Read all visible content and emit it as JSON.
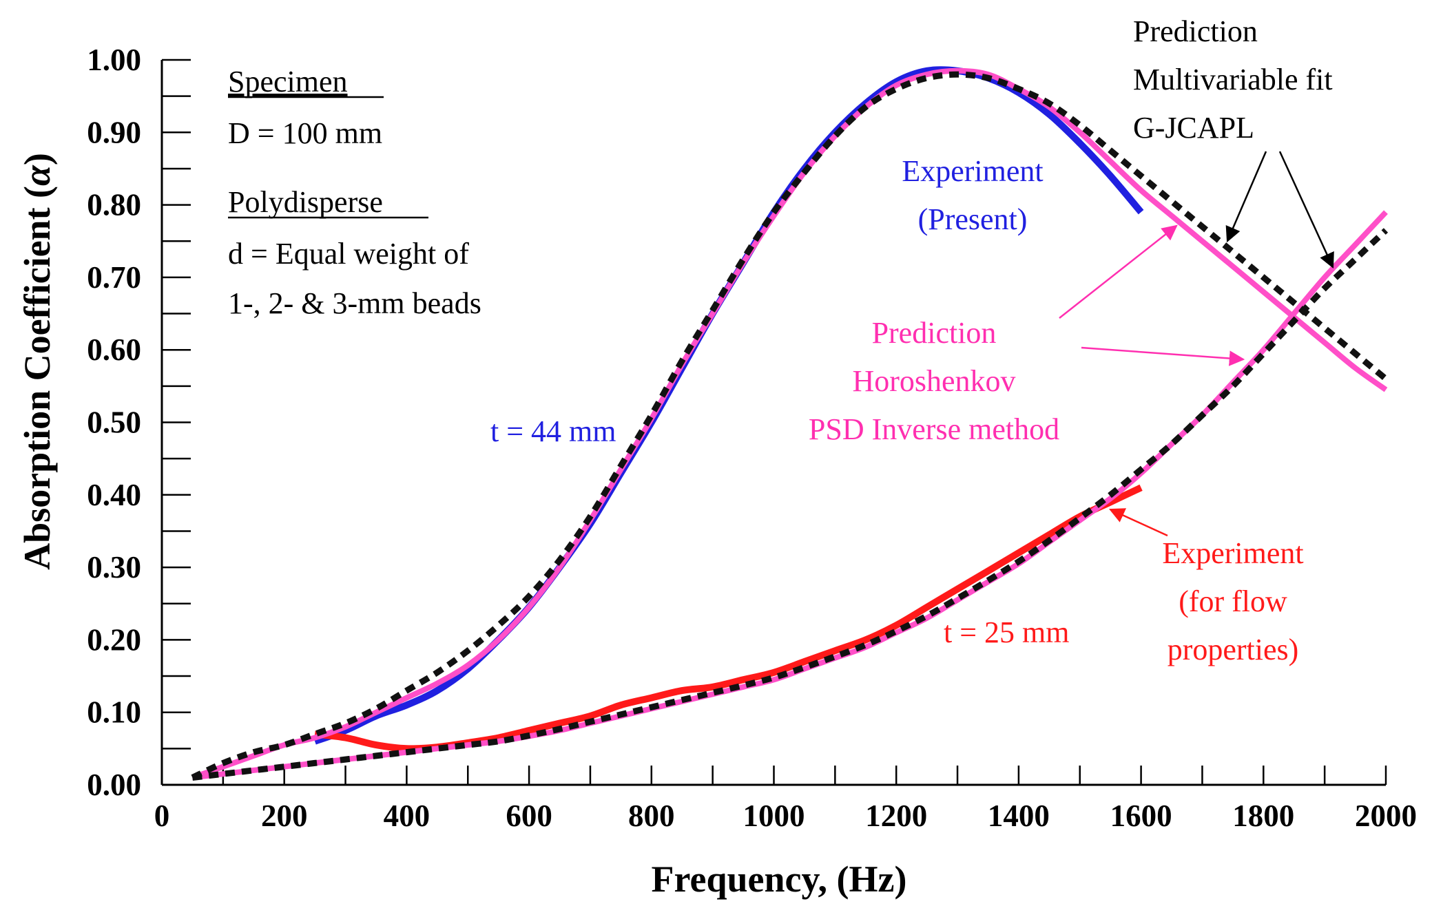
{
  "chart_data": {
    "type": "line",
    "title": "",
    "xlabel": "Frequency, (Hz)",
    "ylabel_main": "Absorption Coefficient (",
    "ylabel_symbol": "α",
    "ylabel_close": ")",
    "xlim": [
      0,
      2000
    ],
    "ylim": [
      0,
      1.0
    ],
    "x_ticks": [
      "0",
      "200",
      "400",
      "600",
      "800",
      "1000",
      "1200",
      "1400",
      "1600",
      "1800",
      "2000"
    ],
    "y_ticks": [
      "0.00",
      "0.10",
      "0.20",
      "0.30",
      "0.40",
      "0.50",
      "0.60",
      "0.70",
      "0.80",
      "0.90",
      "1.00"
    ],
    "grid": false,
    "colors": {
      "experiment_present": "#2020e0",
      "experiment_flow": "#ff1a1a",
      "horoshenkov": "#ff4fc8",
      "gjcapl": "#111111"
    },
    "series": [
      {
        "name": "Experiment (Present), t = 44 mm",
        "color": "experiment_present",
        "style": "solid",
        "x": [
          250,
          300,
          350,
          400,
          450,
          500,
          550,
          600,
          650,
          700,
          750,
          800,
          850,
          900,
          950,
          1000,
          1050,
          1100,
          1150,
          1200,
          1250,
          1300,
          1350,
          1400,
          1450,
          1500,
          1550,
          1600
        ],
        "y": [
          0.06,
          0.075,
          0.095,
          0.11,
          0.13,
          0.16,
          0.2,
          0.245,
          0.3,
          0.36,
          0.43,
          0.5,
          0.575,
          0.65,
          0.72,
          0.79,
          0.85,
          0.9,
          0.94,
          0.97,
          0.985,
          0.985,
          0.975,
          0.955,
          0.925,
          0.885,
          0.84,
          0.79
        ]
      },
      {
        "name": "Prediction Horoshenkov PSD Inverse method, t = 44 mm",
        "color": "horoshenkov",
        "style": "solid",
        "x": [
          50,
          100,
          150,
          200,
          250,
          300,
          350,
          400,
          450,
          500,
          550,
          600,
          650,
          700,
          750,
          800,
          850,
          900,
          950,
          1000,
          1050,
          1100,
          1150,
          1200,
          1250,
          1300,
          1350,
          1400,
          1450,
          1500,
          1550,
          1600,
          1650,
          1700,
          1750,
          1800,
          1850,
          1900,
          1950,
          2000
        ],
        "y": [
          0.01,
          0.025,
          0.04,
          0.055,
          0.065,
          0.08,
          0.1,
          0.12,
          0.14,
          0.165,
          0.2,
          0.245,
          0.3,
          0.365,
          0.435,
          0.505,
          0.58,
          0.65,
          0.72,
          0.785,
          0.845,
          0.895,
          0.935,
          0.965,
          0.98,
          0.985,
          0.98,
          0.96,
          0.935,
          0.9,
          0.86,
          0.82,
          0.785,
          0.75,
          0.715,
          0.68,
          0.645,
          0.61,
          0.575,
          0.545
        ]
      },
      {
        "name": "Prediction Multivariable fit G-JCAPL, t = 44 mm",
        "color": "gjcapl",
        "style": "dashed",
        "x": [
          50,
          100,
          150,
          200,
          250,
          300,
          350,
          400,
          450,
          500,
          550,
          600,
          650,
          700,
          750,
          800,
          850,
          900,
          950,
          1000,
          1050,
          1100,
          1150,
          1200,
          1250,
          1300,
          1350,
          1400,
          1450,
          1500,
          1550,
          1600,
          1650,
          1700,
          1750,
          1800,
          1850,
          1900,
          1950,
          2000
        ],
        "y": [
          0.01,
          0.03,
          0.045,
          0.055,
          0.07,
          0.085,
          0.105,
          0.13,
          0.155,
          0.185,
          0.22,
          0.26,
          0.31,
          0.37,
          0.44,
          0.51,
          0.585,
          0.655,
          0.725,
          0.79,
          0.845,
          0.895,
          0.935,
          0.96,
          0.975,
          0.98,
          0.975,
          0.96,
          0.94,
          0.91,
          0.875,
          0.84,
          0.805,
          0.77,
          0.735,
          0.7,
          0.665,
          0.63,
          0.595,
          0.56
        ]
      },
      {
        "name": "Experiment (for flow properties), t = 25 mm",
        "color": "experiment_flow",
        "style": "solid",
        "x": [
          250,
          300,
          350,
          400,
          450,
          500,
          550,
          600,
          650,
          700,
          750,
          800,
          850,
          900,
          950,
          1000,
          1050,
          1100,
          1150,
          1200,
          1250,
          1300,
          1350,
          1400,
          1450,
          1500,
          1550,
          1600
        ],
        "y": [
          0.07,
          0.065,
          0.055,
          0.05,
          0.052,
          0.058,
          0.065,
          0.075,
          0.085,
          0.095,
          0.11,
          0.12,
          0.13,
          0.135,
          0.145,
          0.155,
          0.17,
          0.185,
          0.2,
          0.22,
          0.245,
          0.27,
          0.295,
          0.32,
          0.345,
          0.37,
          0.39,
          0.41
        ]
      },
      {
        "name": "Prediction Horoshenkov PSD Inverse method, t = 25 mm",
        "color": "horoshenkov",
        "style": "solid",
        "x": [
          50,
          100,
          150,
          200,
          250,
          300,
          350,
          400,
          450,
          500,
          550,
          600,
          650,
          700,
          750,
          800,
          850,
          900,
          950,
          1000,
          1050,
          1100,
          1150,
          1200,
          1250,
          1300,
          1350,
          1400,
          1450,
          1500,
          1550,
          1600,
          1650,
          1700,
          1750,
          1800,
          1850,
          1900,
          1950,
          2000
        ],
        "y": [
          0.01,
          0.015,
          0.02,
          0.025,
          0.03,
          0.035,
          0.04,
          0.045,
          0.05,
          0.055,
          0.06,
          0.067,
          0.075,
          0.085,
          0.095,
          0.105,
          0.115,
          0.125,
          0.135,
          0.145,
          0.16,
          0.175,
          0.19,
          0.21,
          0.23,
          0.255,
          0.28,
          0.305,
          0.335,
          0.365,
          0.395,
          0.43,
          0.47,
          0.51,
          0.555,
          0.6,
          0.65,
          0.7,
          0.745,
          0.79
        ]
      },
      {
        "name": "Prediction Multivariable fit G-JCAPL, t = 25 mm",
        "color": "gjcapl",
        "style": "dashed",
        "x": [
          50,
          100,
          150,
          200,
          250,
          300,
          350,
          400,
          450,
          500,
          550,
          600,
          650,
          700,
          750,
          800,
          850,
          900,
          950,
          1000,
          1050,
          1100,
          1150,
          1200,
          1250,
          1300,
          1350,
          1400,
          1450,
          1500,
          1550,
          1600,
          1650,
          1700,
          1750,
          1800,
          1850,
          1900,
          1950,
          2000
        ],
        "y": [
          0.01,
          0.015,
          0.02,
          0.025,
          0.03,
          0.035,
          0.04,
          0.045,
          0.05,
          0.055,
          0.06,
          0.068,
          0.077,
          0.087,
          0.097,
          0.107,
          0.117,
          0.127,
          0.137,
          0.148,
          0.162,
          0.177,
          0.193,
          0.212,
          0.233,
          0.257,
          0.282,
          0.308,
          0.337,
          0.368,
          0.4,
          0.435,
          0.47,
          0.51,
          0.55,
          0.595,
          0.64,
          0.685,
          0.725,
          0.765
        ]
      }
    ],
    "annotations": {
      "specimen_heading": "Specimen",
      "specimen_dim": "D = 100 mm",
      "poly_heading": "Polydisperse",
      "poly_line1": "d = Equal weight of",
      "poly_line2": "1-, 2- & 3-mm beads",
      "t44": "t = 44 mm",
      "t25": "t = 25 mm",
      "exp_present_line1": "Experiment",
      "exp_present_line2": "(Present)",
      "gj_line1": "Prediction",
      "gj_line2": "Multivariable fit",
      "gj_line3": "G-JCAPL",
      "horo_line1": "Prediction",
      "horo_line2": "Horoshenkov",
      "horo_line3": "PSD Inverse method",
      "exp_flow_line1": "Experiment",
      "exp_flow_line2": "(for flow",
      "exp_flow_line3": "properties)"
    }
  }
}
